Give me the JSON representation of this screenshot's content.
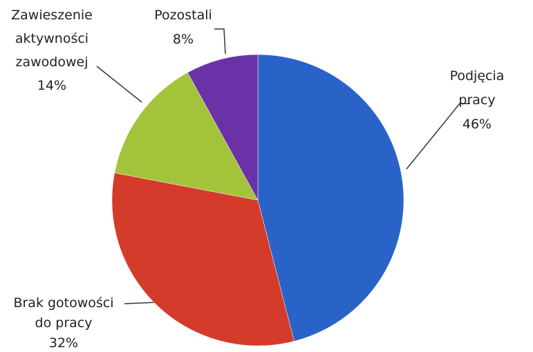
{
  "chart_data": {
    "type": "pie",
    "categories": [
      "Podjęcia pracy",
      "Brak gotowości\ndo pracy",
      "Zawieszenie\naktywności\nzawodowej",
      "Pozostali"
    ],
    "values": [
      46,
      32,
      14,
      8
    ],
    "value_labels": [
      "46%",
      "32%",
      "14%",
      "8%"
    ],
    "colors": [
      "#2a63c8",
      "#d43b2b",
      "#a3c33b",
      "#6b32a8"
    ]
  }
}
